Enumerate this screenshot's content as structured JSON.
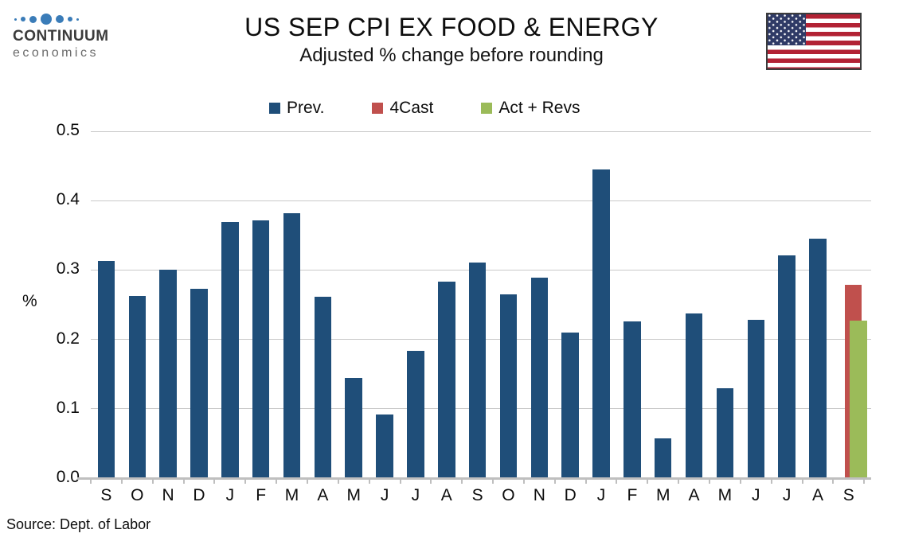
{
  "branding": {
    "logo_line1": "CONTINUUM",
    "logo_line2": "economics",
    "logo_dot_color": "#3a7cb8",
    "logo_dot_sizes": [
      3,
      6,
      9,
      14,
      10,
      6,
      3
    ]
  },
  "flag": {
    "icon": "us-flag-icon",
    "stripe_red": "#b22234",
    "canton_blue": "#2f3a66"
  },
  "footer": {
    "source": "Source: Dept. of Labor"
  },
  "colors": {
    "prev_blue": "#1f4e79",
    "forecast_red": "#c0504d",
    "actual_green": "#9bbb59",
    "gridline": "#c9c9c9",
    "axis": "#bfbfbf"
  },
  "chart_data": {
    "type": "bar",
    "title": "US SEP CPI EX FOOD & ENERGY",
    "subtitle": "Adjusted % change before rounding",
    "ylabel": "%",
    "ylim": [
      0,
      0.5
    ],
    "ytick_step": 0.1,
    "grid": true,
    "legend_position": "top-center",
    "categories": [
      "S",
      "O",
      "N",
      "D",
      "J",
      "F",
      "M",
      "A",
      "M",
      "J",
      "J",
      "A",
      "S",
      "O",
      "N",
      "D",
      "J",
      "F",
      "M",
      "A",
      "M",
      "J",
      "J",
      "A",
      "S"
    ],
    "series": [
      {
        "name": "Prev.",
        "color": "#1f4e79",
        "values": [
          0.313,
          0.263,
          0.301,
          0.273,
          0.369,
          0.371,
          0.382,
          0.262,
          0.144,
          0.092,
          0.184,
          0.283,
          0.311,
          0.265,
          0.289,
          0.21,
          0.445,
          0.226,
          0.057,
          0.237,
          0.13,
          0.228,
          0.321,
          0.345,
          null
        ]
      },
      {
        "name": "4Cast",
        "color": "#c0504d",
        "values": [
          null,
          null,
          null,
          null,
          null,
          null,
          null,
          null,
          null,
          null,
          null,
          null,
          null,
          null,
          null,
          null,
          null,
          null,
          null,
          null,
          null,
          null,
          null,
          null,
          0.279
        ]
      },
      {
        "name": "Act + Revs",
        "color": "#9bbb59",
        "values": [
          null,
          null,
          null,
          null,
          null,
          null,
          null,
          null,
          null,
          null,
          null,
          null,
          null,
          null,
          null,
          null,
          null,
          null,
          null,
          null,
          null,
          null,
          null,
          null,
          0.227
        ]
      }
    ]
  }
}
